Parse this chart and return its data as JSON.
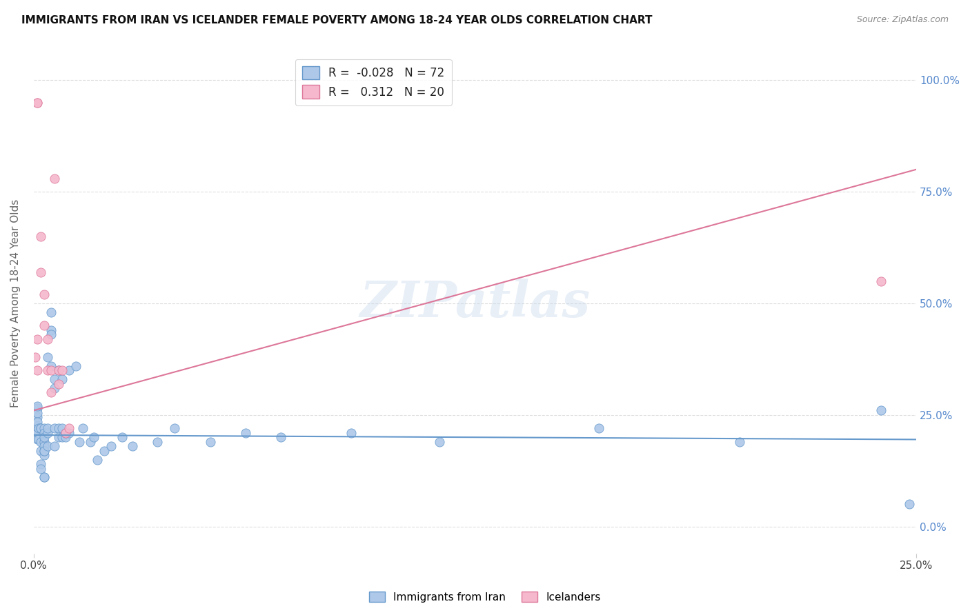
{
  "title": "IMMIGRANTS FROM IRAN VS ICELANDER FEMALE POVERTY AMONG 18-24 YEAR OLDS CORRELATION CHART",
  "source": "Source: ZipAtlas.com",
  "ylabel": "Female Poverty Among 18-24 Year Olds",
  "right_yticks": [
    0.0,
    0.25,
    0.5,
    0.75,
    1.0
  ],
  "right_yticklabels": [
    "0.0%",
    "25.0%",
    "50.0%",
    "75.0%",
    "100.0%"
  ],
  "xmin": 0.0,
  "xmax": 0.25,
  "ymin": -0.06,
  "ymax": 1.06,
  "blue_R": -0.028,
  "blue_N": 72,
  "pink_R": 0.312,
  "pink_N": 20,
  "blue_color": "#adc8e8",
  "pink_color": "#f5b8cc",
  "blue_line_color": "#6699cc",
  "pink_line_color": "#dd7799",
  "blue_trend": [
    0.0,
    0.25,
    0.205,
    0.195
  ],
  "pink_trend": [
    0.0,
    0.25,
    0.26,
    0.8
  ],
  "blue_scatter": [
    [
      0.0005,
      0.22
    ],
    [
      0.001,
      0.245
    ],
    [
      0.001,
      0.265
    ],
    [
      0.001,
      0.225
    ],
    [
      0.001,
      0.195
    ],
    [
      0.001,
      0.255
    ],
    [
      0.001,
      0.215
    ],
    [
      0.001,
      0.21
    ],
    [
      0.001,
      0.235
    ],
    [
      0.001,
      0.27
    ],
    [
      0.0015,
      0.22
    ],
    [
      0.0015,
      0.195
    ],
    [
      0.002,
      0.22
    ],
    [
      0.002,
      0.19
    ],
    [
      0.002,
      0.17
    ],
    [
      0.002,
      0.14
    ],
    [
      0.002,
      0.22
    ],
    [
      0.002,
      0.13
    ],
    [
      0.003,
      0.22
    ],
    [
      0.003,
      0.19
    ],
    [
      0.003,
      0.18
    ],
    [
      0.003,
      0.16
    ],
    [
      0.003,
      0.17
    ],
    [
      0.003,
      0.11
    ],
    [
      0.003,
      0.21
    ],
    [
      0.003,
      0.2
    ],
    [
      0.003,
      0.17
    ],
    [
      0.003,
      0.11
    ],
    [
      0.004,
      0.38
    ],
    [
      0.004,
      0.21
    ],
    [
      0.004,
      0.18
    ],
    [
      0.004,
      0.22
    ],
    [
      0.005,
      0.44
    ],
    [
      0.005,
      0.36
    ],
    [
      0.005,
      0.48
    ],
    [
      0.005,
      0.43
    ],
    [
      0.006,
      0.31
    ],
    [
      0.006,
      0.22
    ],
    [
      0.006,
      0.18
    ],
    [
      0.006,
      0.33
    ],
    [
      0.007,
      0.35
    ],
    [
      0.007,
      0.22
    ],
    [
      0.007,
      0.2
    ],
    [
      0.007,
      0.35
    ],
    [
      0.008,
      0.33
    ],
    [
      0.008,
      0.2
    ],
    [
      0.008,
      0.22
    ],
    [
      0.009,
      0.2
    ],
    [
      0.009,
      0.21
    ],
    [
      0.01,
      0.35
    ],
    [
      0.01,
      0.21
    ],
    [
      0.012,
      0.36
    ],
    [
      0.013,
      0.19
    ],
    [
      0.014,
      0.22
    ],
    [
      0.016,
      0.19
    ],
    [
      0.017,
      0.2
    ],
    [
      0.018,
      0.15
    ],
    [
      0.02,
      0.17
    ],
    [
      0.022,
      0.18
    ],
    [
      0.025,
      0.2
    ],
    [
      0.028,
      0.18
    ],
    [
      0.035,
      0.19
    ],
    [
      0.04,
      0.22
    ],
    [
      0.05,
      0.19
    ],
    [
      0.06,
      0.21
    ],
    [
      0.07,
      0.2
    ],
    [
      0.09,
      0.21
    ],
    [
      0.115,
      0.19
    ],
    [
      0.16,
      0.22
    ],
    [
      0.2,
      0.19
    ],
    [
      0.24,
      0.26
    ],
    [
      0.248,
      0.05
    ]
  ],
  "pink_scatter": [
    [
      0.0005,
      0.38
    ],
    [
      0.001,
      0.35
    ],
    [
      0.001,
      0.42
    ],
    [
      0.001,
      0.95
    ],
    [
      0.001,
      0.95
    ],
    [
      0.002,
      0.65
    ],
    [
      0.002,
      0.57
    ],
    [
      0.003,
      0.52
    ],
    [
      0.003,
      0.45
    ],
    [
      0.004,
      0.42
    ],
    [
      0.004,
      0.35
    ],
    [
      0.005,
      0.3
    ],
    [
      0.005,
      0.35
    ],
    [
      0.006,
      0.78
    ],
    [
      0.007,
      0.35
    ],
    [
      0.007,
      0.32
    ],
    [
      0.008,
      0.35
    ],
    [
      0.009,
      0.21
    ],
    [
      0.01,
      0.22
    ],
    [
      0.24,
      0.55
    ]
  ],
  "watermark_text": "ZIPatlas",
  "bg_color": "#ffffff",
  "grid_color": "#dddddd"
}
